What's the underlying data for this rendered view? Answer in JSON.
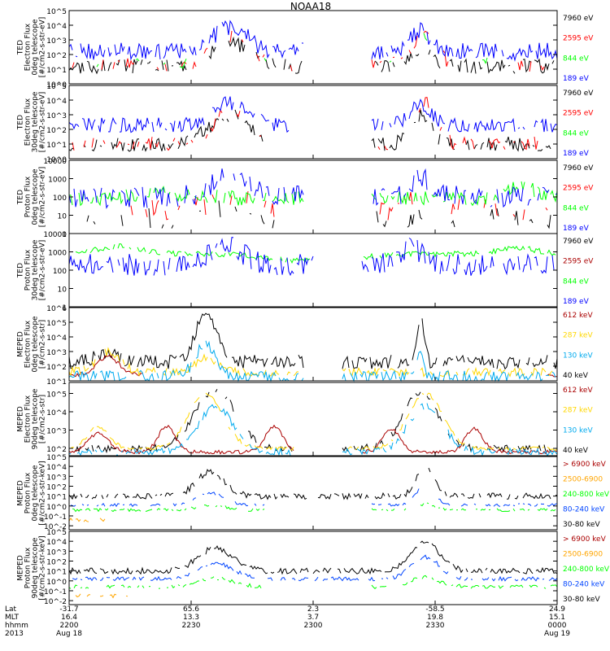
{
  "title": "NOAA18",
  "colors": {
    "black": "#000000",
    "red": "#ff0000",
    "green": "#00ff00",
    "blue": "#0000ff",
    "darkred": "#aa0000",
    "gold": "#ffd700",
    "cyan": "#00aaee",
    "orange": "#ffa500",
    "mblue": "#0044ff"
  },
  "panels": [
    {
      "id": "ted-e-0",
      "ylabel": [
        "TED",
        "Electron Flux",
        "0deg telescope",
        "[#/cm2-s-str-eV]"
      ],
      "scale": "log",
      "ticks": [
        {
          "v": "10^0",
          "e": 0
        },
        {
          "v": "10^1",
          "e": 1
        },
        {
          "v": "10^2",
          "e": 2
        },
        {
          "v": "10^3",
          "e": 3
        },
        {
          "v": "10^4",
          "e": 4
        },
        {
          "v": "10^5",
          "e": 5
        }
      ],
      "ymin": 0,
      "ymax": 5,
      "legend": [
        {
          "text": "7960 eV",
          "color": "black"
        },
        {
          "text": "2595 eV",
          "color": "red"
        },
        {
          "text": "844 eV",
          "color": "green"
        },
        {
          "text": "189 eV",
          "color": "blue"
        }
      ]
    },
    {
      "id": "ted-e-30",
      "ylabel": [
        "TED",
        "Electron Flux",
        "30deg telescope",
        "[#/cm2-s-str-eV]"
      ],
      "scale": "log",
      "ticks": [
        {
          "v": "10^0",
          "e": 0
        },
        {
          "v": "10^1",
          "e": 1
        },
        {
          "v": "10^2",
          "e": 2
        },
        {
          "v": "10^3",
          "e": 3
        },
        {
          "v": "10^4",
          "e": 4
        },
        {
          "v": "10^5",
          "e": 5
        }
      ],
      "ymin": 0,
      "ymax": 5,
      "legend": [
        {
          "text": "7960 eV",
          "color": "black"
        },
        {
          "text": "2595 eV",
          "color": "red"
        },
        {
          "text": "844 eV",
          "color": "green"
        },
        {
          "text": "189 eV",
          "color": "blue"
        }
      ]
    },
    {
      "id": "ted-p-0",
      "ylabel": [
        "TED",
        "Proton Flux",
        "0deg telescope",
        "[#/cm2-s-str-eV]"
      ],
      "scale": "log",
      "ticks": [
        {
          "v": "1",
          "e": 0
        },
        {
          "v": "10",
          "e": 1
        },
        {
          "v": "100",
          "e": 2
        },
        {
          "v": "1000",
          "e": 3
        },
        {
          "v": "10000",
          "e": 4
        }
      ],
      "ymin": 0,
      "ymax": 4,
      "legend": [
        {
          "text": "7960 eV",
          "color": "black"
        },
        {
          "text": "2595 eV",
          "color": "red"
        },
        {
          "text": "844 eV",
          "color": "green"
        },
        {
          "text": "189 eV",
          "color": "blue"
        }
      ]
    },
    {
      "id": "ted-p-30",
      "ylabel": [
        "TED",
        "Proton Flux",
        "30deg telescope",
        "[#/cm2-s-str-eV]"
      ],
      "scale": "log",
      "ticks": [
        {
          "v": "1",
          "e": 0
        },
        {
          "v": "10",
          "e": 1
        },
        {
          "v": "100",
          "e": 2
        },
        {
          "v": "1000",
          "e": 3
        },
        {
          "v": "10000",
          "e": 4
        }
      ],
      "ymin": 0,
      "ymax": 4,
      "legend": [
        {
          "text": "7960 eV",
          "color": "black"
        },
        {
          "text": "2595 eV",
          "color": "darkred"
        },
        {
          "text": "844 eV",
          "color": "green"
        },
        {
          "text": "189 eV",
          "color": "blue"
        }
      ]
    },
    {
      "id": "meped-e-0",
      "ylabel": [
        "MEPED",
        "Electron Flux",
        "0deg telescope",
        "[#/cm2-s-str]"
      ],
      "scale": "log",
      "ticks": [
        {
          "v": "10^1",
          "e": 1
        },
        {
          "v": "10^2",
          "e": 2
        },
        {
          "v": "10^3",
          "e": 3
        },
        {
          "v": "10^4",
          "e": 4
        },
        {
          "v": "10^5",
          "e": 5
        },
        {
          "v": "10^6",
          "e": 6
        }
      ],
      "ymin": 1,
      "ymax": 6,
      "legend": [
        {
          "text": "612 keV",
          "color": "darkred"
        },
        {
          "text": "287 keV",
          "color": "gold"
        },
        {
          "text": "130 keV",
          "color": "cyan"
        },
        {
          "text": "40 keV",
          "color": "black"
        }
      ]
    },
    {
      "id": "meped-e-90",
      "ylabel": [
        "MEPED",
        "Electron Flux",
        "90deg telescope",
        "[#/cm2-s-str]"
      ],
      "scale": "log",
      "ticks": [
        {
          "v": "10^2",
          "e": 2
        },
        {
          "v": "10^3",
          "e": 3
        },
        {
          "v": "10^4",
          "e": 4
        },
        {
          "v": "10^5",
          "e": 5
        }
      ],
      "ymin": 1.6,
      "ymax": 5.6,
      "legend": [
        {
          "text": "612 keV",
          "color": "darkred"
        },
        {
          "text": "287 keV",
          "color": "gold"
        },
        {
          "text": "130 keV",
          "color": "cyan"
        },
        {
          "text": "40 keV",
          "color": "black"
        }
      ]
    },
    {
      "id": "meped-p-0",
      "ylabel": [
        "MEPED",
        "Proton Flux",
        "0deg telescope",
        "[#/cm2-s-str-keV]"
      ],
      "scale": "log",
      "ticks": [
        {
          "v": "10^-2",
          "e": -2
        },
        {
          "v": "10^-1",
          "e": -1
        },
        {
          "v": "10^0",
          "e": 0
        },
        {
          "v": "10^1",
          "e": 1
        },
        {
          "v": "10^2",
          "e": 2
        },
        {
          "v": "10^3",
          "e": 3
        },
        {
          "v": "10^4",
          "e": 4
        },
        {
          "v": "10^5",
          "e": 5
        }
      ],
      "ymin": -2.4,
      "ymax": 5,
      "legend": [
        {
          "text": "> 6900 keV",
          "color": "darkred"
        },
        {
          "text": "2500-6900",
          "color": "orange"
        },
        {
          "text": "240-800 keV",
          "color": "green"
        },
        {
          "text": "80-240 keV",
          "color": "mblue"
        },
        {
          "text": "30-80 keV",
          "color": "black"
        }
      ]
    },
    {
      "id": "meped-p-90",
      "ylabel": [
        "MEPED",
        "Proton Flux",
        "90deg telescope",
        "[#/cm2-s-str-keV]"
      ],
      "scale": "log",
      "ticks": [
        {
          "v": "10^-2",
          "e": -2
        },
        {
          "v": "10^-1",
          "e": -1
        },
        {
          "v": "10^0",
          "e": 0
        },
        {
          "v": "10^1",
          "e": 1
        },
        {
          "v": "10^2",
          "e": 2
        },
        {
          "v": "10^3",
          "e": 3
        },
        {
          "v": "10^4",
          "e": 4
        },
        {
          "v": "10^5",
          "e": 5
        }
      ],
      "ymin": -2.4,
      "ymax": 5,
      "legend": [
        {
          "text": "> 6900 keV",
          "color": "darkred"
        },
        {
          "text": "2500-6900",
          "color": "orange"
        },
        {
          "text": "240-800 keV",
          "color": "green"
        },
        {
          "text": "80-240 keV",
          "color": "mblue"
        },
        {
          "text": "30-80 keV",
          "color": "black"
        }
      ]
    }
  ],
  "xaxis": {
    "row_labels": [
      "Lat",
      "MLT",
      "hhmm",
      "2013"
    ],
    "ticks": [
      {
        "x": 0.0,
        "lines": [
          "-31.7",
          "16.4",
          "2200",
          "Aug 18"
        ]
      },
      {
        "x": 0.25,
        "lines": [
          "65.6",
          "13.3",
          "2230",
          ""
        ]
      },
      {
        "x": 0.5,
        "lines": [
          "2.3",
          "3.7",
          "2300",
          ""
        ]
      },
      {
        "x": 0.75,
        "lines": [
          "-58.5",
          "19.8",
          "2330",
          ""
        ]
      },
      {
        "x": 1.0,
        "lines": [
          "24.9",
          "15.1",
          "0000",
          "Aug 19"
        ]
      }
    ]
  },
  "chart_data": {
    "type": "line",
    "title": "NOAA18",
    "x_range": [
      "2200",
      "0000"
    ],
    "features": [
      {
        "panel": "TED Electron Flux 0deg",
        "bursts_at": [
          "~2228-2240",
          "~2327-2336"
        ],
        "peak": 4.5
      },
      {
        "panel": "TED Electron Flux 30deg",
        "bursts_at": [
          "~2228-2240",
          "~2327-2336"
        ],
        "peak": 4.0
      },
      {
        "panel": "TED Proton Flux 0deg",
        "peak": 3.7
      },
      {
        "panel": "TED Proton Flux 30deg",
        "peak": 3.3
      },
      {
        "panel": "MEPED Electron Flux 0deg",
        "peak": 6.0
      },
      {
        "panel": "MEPED Electron Flux 90deg",
        "peak": 5.5
      },
      {
        "panel": "MEPED Proton Flux 0deg",
        "peak": 4.2
      },
      {
        "panel": "MEPED Proton Flux 90deg",
        "peak": 4.3
      }
    ]
  }
}
